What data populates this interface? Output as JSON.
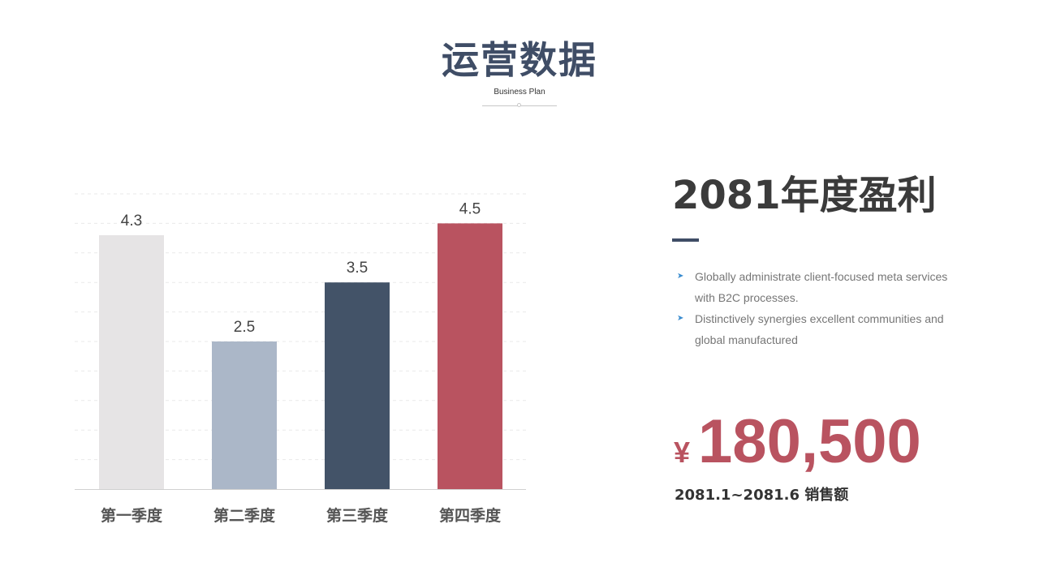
{
  "header": {
    "title": "运营数据",
    "subtitle": "Business Plan"
  },
  "chart_data": {
    "type": "bar",
    "categories": [
      "第一季度",
      "第二季度",
      "第三季度",
      "第四季度"
    ],
    "values": [
      4.3,
      2.5,
      3.5,
      4.5
    ],
    "colors": [
      "#e6e4e5",
      "#abb7c8",
      "#435368",
      "#b95360"
    ],
    "ylim": [
      0,
      5
    ],
    "grid": true,
    "title": "",
    "xlabel": "",
    "ylabel": ""
  },
  "right_panel": {
    "title": "2081年度盈利",
    "bullets": [
      "Globally administrate client-focused meta services with B2C processes.",
      "Distinctively synergies excellent communities and global manufactured"
    ],
    "bullet_icon": "arrow-right-icon",
    "currency_symbol": "¥",
    "amount": "180,500",
    "period_label": "2081.1~2081.6 销售额"
  },
  "colors": {
    "accent_navy": "#3f4d66",
    "accent_red": "#b95360",
    "bullet_blue": "#3a8ccf"
  }
}
